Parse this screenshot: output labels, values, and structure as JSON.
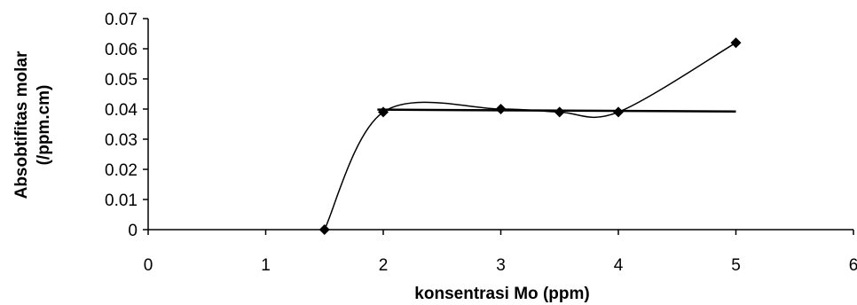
{
  "chart_data": {
    "type": "line",
    "title": "",
    "xlabel": "konsentrasi Mo (ppm)",
    "ylabel_line1": "Absobtifitas molar",
    "ylabel_line2": "(/ppm.cm)",
    "xlim": [
      0,
      6
    ],
    "ylim": [
      0,
      0.07
    ],
    "x_ticks": [
      0,
      1,
      2,
      3,
      4,
      5,
      6
    ],
    "y_ticks": [
      0,
      0.01,
      0.02,
      0.03,
      0.04,
      0.05,
      0.06,
      0.07
    ],
    "x_tick_labels": [
      "0",
      "1",
      "2",
      "3",
      "4",
      "5",
      "6"
    ],
    "y_tick_labels": [
      "0",
      "0.01",
      "0.02",
      "0.03",
      "0.04",
      "0.05",
      "0.06",
      "0.07"
    ],
    "grid": false,
    "legend": "none",
    "series": [
      {
        "style": "smoothed-line-with-diamond-markers",
        "color": "#000000",
        "x": [
          1.5,
          2,
          3,
          3.5,
          4,
          5
        ],
        "y": [
          0,
          0.039,
          0.04,
          0.039,
          0.039,
          0.062
        ]
      },
      {
        "style": "trend-line",
        "color": "#000000",
        "x": [
          1.95,
          5.0
        ],
        "y": [
          0.0398,
          0.0392
        ]
      }
    ]
  }
}
